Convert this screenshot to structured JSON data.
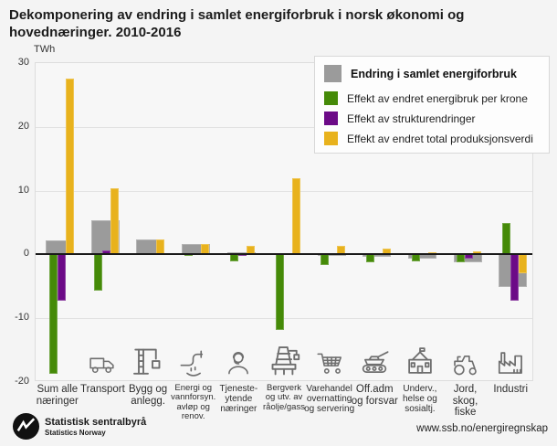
{
  "title": "Dekomponering av endring i samlet energiforbruk i norsk økonomi og hovednæringer. 2010-2016",
  "unit_label": "TWh",
  "legend": [
    {
      "label": "Endring i samlet energiforbruk",
      "color": "#9b9b9b",
      "bold": true
    },
    {
      "label": "Effekt av endret energibruk per krone",
      "color": "#458a08",
      "bold": false
    },
    {
      "label": "Effekt av strukturendringer",
      "color": "#6c0a87",
      "bold": false
    },
    {
      "label": "Effekt av endret total produksjonsverdi",
      "color": "#e8b21d",
      "bold": false
    }
  ],
  "chart_data": {
    "type": "bar",
    "title": "Dekomponering av endring i samlet energiforbruk i norsk økonomi og hovednæringer. 2010-2016",
    "ylabel": "TWh",
    "ylim": [
      -20,
      30
    ],
    "yticks": [
      30,
      20,
      10,
      0,
      -10,
      -20
    ],
    "grid": "horizontal",
    "legend_position": "top-right",
    "categories": [
      "Sum alle næringer",
      "Transport",
      "Bygg og anlegg.",
      "Energi og vannforsyn. avløp og renov.",
      "Tjenesteytende næringer",
      "Bergverk og utv. av råolje/gass",
      "Varehandel overnatting og servering",
      "Off.adm og forsvar",
      "Underv., helse og sosialtj.",
      "Jord, skog, fiske",
      "Industri"
    ],
    "category_label_lines": [
      [
        "Sum alle",
        "næringer"
      ],
      [
        "Transport"
      ],
      [
        "Bygg og",
        "anlegg."
      ],
      [
        "Energi og",
        "vannforsyn.",
        "avløp og",
        "renov."
      ],
      [
        "Tjeneste-",
        "ytende",
        "næringer"
      ],
      [
        "Bergverk",
        "og utv. av",
        "råolje/gass"
      ],
      [
        "Varehandel",
        "overnatting",
        "og servering"
      ],
      [
        "Off.adm",
        "og forsvar"
      ],
      [
        "Underv.,",
        "helse og",
        "sosialtj."
      ],
      [
        "Jord,",
        "skog,",
        "fiske"
      ],
      [
        "Industri"
      ]
    ],
    "category_icons": [
      null,
      "truck",
      "crane",
      "pipes",
      "service-person",
      "oil-platform",
      "shopping-cart",
      "tank",
      "public-building",
      "tractor",
      "factory"
    ],
    "series": [
      {
        "name": "Endring i samlet energiforbruk",
        "color": "#9b9b9b",
        "values": [
          2.2,
          5.4,
          2.3,
          1.7,
          0.3,
          -0.1,
          -0.2,
          -0.4,
          -0.6,
          -1.2,
          -5.1
        ]
      },
      {
        "name": "Effekt av endret energibruk per krone",
        "color": "#458a08",
        "values": [
          -18.7,
          -5.7,
          0,
          -0.3,
          -1.1,
          -11.9,
          -1.7,
          -1.3,
          -1.1,
          -1.2,
          4.9
        ]
      },
      {
        "name": "Effekt av strukturendringer",
        "color": "#6c0a87",
        "values": [
          -7.2,
          0.7,
          0,
          0,
          -0.2,
          0,
          0,
          0,
          0,
          -0.6,
          -7.2
        ]
      },
      {
        "name": "Effekt av endret total produksjonsverdi",
        "color": "#e8b21d",
        "values": [
          27.6,
          10.4,
          2.3,
          1.7,
          1.4,
          11.9,
          1.3,
          0.9,
          0.4,
          0.5,
          -3.0
        ]
      }
    ]
  },
  "footer": {
    "org_name": "Statistisk sentralbyrå",
    "org_name_en": "Statistics Norway",
    "url": "www.ssb.no/energiregnskap"
  }
}
